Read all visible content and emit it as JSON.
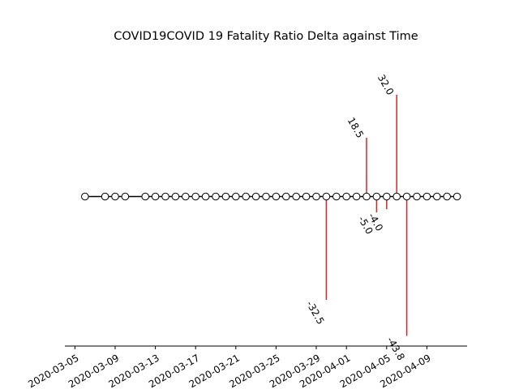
{
  "chart_data": {
    "type": "stem-timeline",
    "title": "COVID19COVID 19 Fatality Ratio Delta against Time",
    "xlabel": "",
    "ylabel": "",
    "x_tick_labels": [
      "2020-03-05",
      "2020-03-09",
      "2020-03-13",
      "2020-03-17",
      "2020-03-21",
      "2020-03-25",
      "2020-03-29",
      "2020-04-01",
      "2020-04-05",
      "2020-04-09"
    ],
    "x_tick_dates": [
      "2020-03-05",
      "2020-03-09",
      "2020-03-13",
      "2020-03-17",
      "2020-03-21",
      "2020-03-25",
      "2020-03-29",
      "2020-04-01",
      "2020-04-05",
      "2020-04-09"
    ],
    "xlim": [
      "2020-03-04",
      "2020-04-13"
    ],
    "ylim": [
      -47,
      47
    ],
    "points": [
      "2020-03-06",
      "2020-03-08",
      "2020-03-09",
      "2020-03-10",
      "2020-03-12",
      "2020-03-13",
      "2020-03-14",
      "2020-03-15",
      "2020-03-16",
      "2020-03-17",
      "2020-03-18",
      "2020-03-19",
      "2020-03-20",
      "2020-03-21",
      "2020-03-22",
      "2020-03-23",
      "2020-03-24",
      "2020-03-25",
      "2020-03-26",
      "2020-03-27",
      "2020-03-28",
      "2020-03-29",
      "2020-03-30",
      "2020-03-31",
      "2020-04-01",
      "2020-04-02",
      "2020-04-03",
      "2020-04-04",
      "2020-04-05",
      "2020-04-06",
      "2020-04-07",
      "2020-04-08",
      "2020-04-09",
      "2020-04-10",
      "2020-04-11",
      "2020-04-12"
    ],
    "stems": [
      {
        "date": "2020-03-30",
        "value": -32.5,
        "label": "-32.5"
      },
      {
        "date": "2020-04-03",
        "value": 18.5,
        "label": "18.5"
      },
      {
        "date": "2020-04-04",
        "value": -5.0,
        "label": "-5.0"
      },
      {
        "date": "2020-04-05",
        "value": -4.0,
        "label": "-4.0"
      },
      {
        "date": "2020-04-06",
        "value": 32.0,
        "label": "32.0"
      },
      {
        "date": "2020-04-07",
        "value": -43.8,
        "label": "-43.8"
      }
    ],
    "grid": false,
    "colors": {
      "stem": "#d62728",
      "baseline": "#000000",
      "marker_fill": "#ffffff",
      "marker_edge": "#000000"
    }
  }
}
